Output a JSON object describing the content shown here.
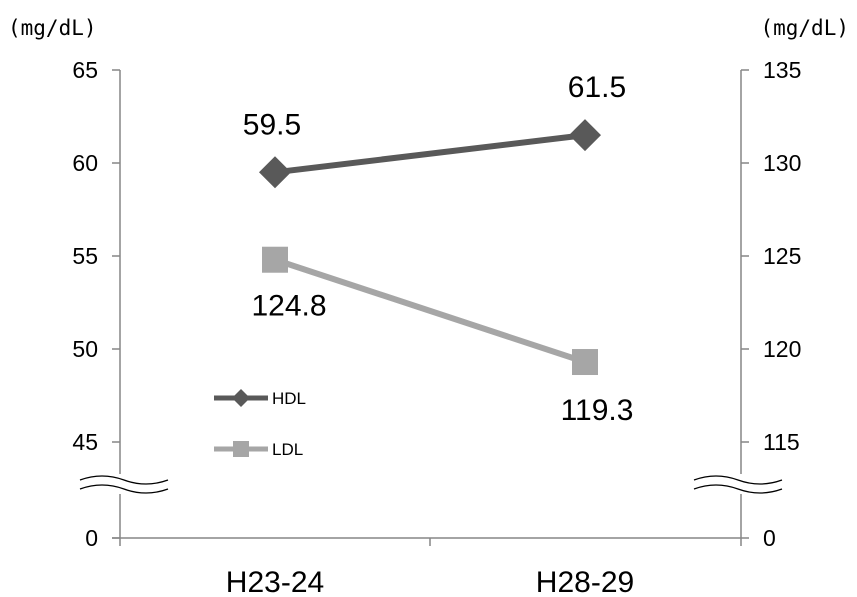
{
  "chart_data": {
    "type": "line",
    "categories": [
      "H23-24",
      "H28-29"
    ],
    "series": [
      {
        "name": "HDL",
        "axis": "left",
        "color": "#595959",
        "marker": "diamond",
        "values": [
          59.5,
          61.5
        ],
        "labels": [
          "59.5",
          "61.5"
        ]
      },
      {
        "name": "LDL",
        "axis": "right",
        "color": "#a6a6a6",
        "marker": "square",
        "values": [
          124.8,
          119.3
        ],
        "labels": [
          "124.8",
          "119.3"
        ]
      }
    ],
    "left_axis": {
      "unit": "(mg/dL)",
      "ticks": [
        65,
        60,
        55,
        50,
        45
      ],
      "tick_labels": [
        "65",
        "60",
        "55",
        "50",
        "45"
      ],
      "ylim": [
        45,
        65
      ],
      "broken": true,
      "base_label": "0"
    },
    "right_axis": {
      "unit": "(mg/dL)",
      "ticks": [
        135,
        130,
        125,
        120,
        115
      ],
      "tick_labels": [
        "135",
        "130",
        "125",
        "120",
        "115"
      ],
      "ylim": [
        115,
        135
      ],
      "broken": true,
      "base_label": "0"
    },
    "grid": false,
    "legend": "center-left"
  }
}
